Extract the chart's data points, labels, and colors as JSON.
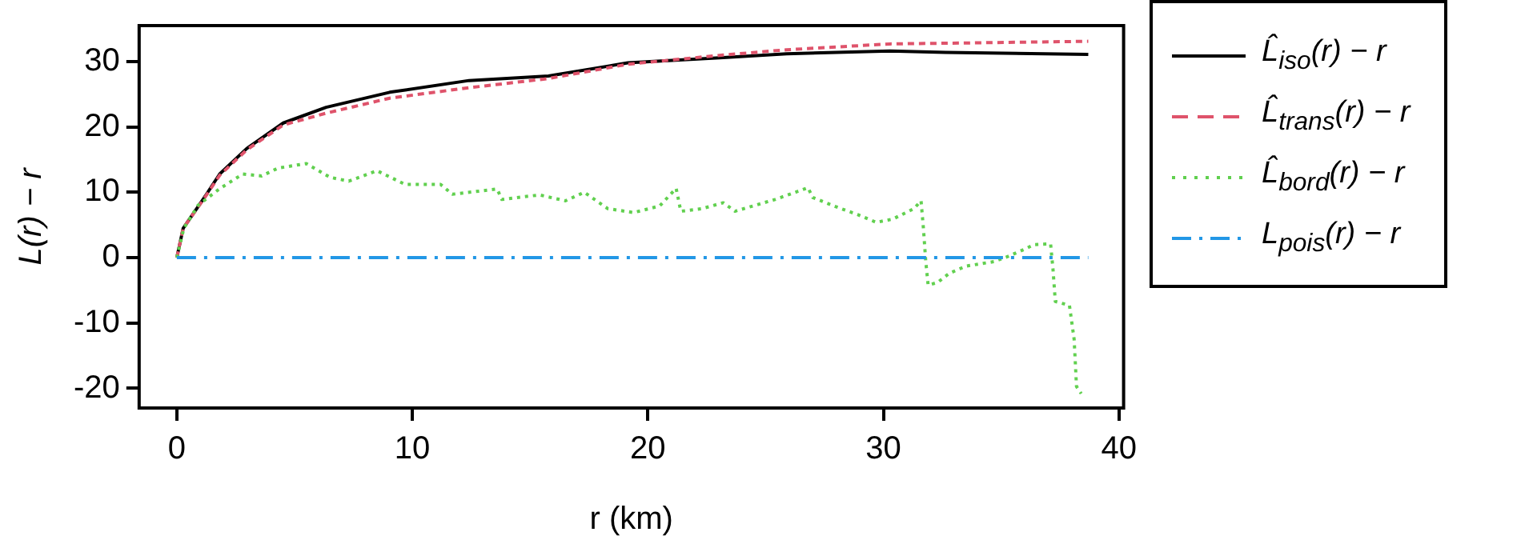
{
  "chart_data": {
    "type": "line",
    "xlabel": "r (km)",
    "ylabel": "L(r) − r",
    "xlim": [
      -1.6,
      40.2
    ],
    "ylim": [
      -23,
      35.5
    ],
    "xticks": [
      0,
      10,
      20,
      30,
      40
    ],
    "yticks": [
      -20,
      -10,
      0,
      10,
      20,
      30
    ],
    "grid": false,
    "legend": "right",
    "marker": "none",
    "series": [
      {
        "name": "L̂$_{iso}$(r) − r",
        "color": "#000000",
        "line_style": "solid",
        "x": [
          0,
          0.27,
          1.15,
          1.82,
          2.97,
          4.52,
          6.34,
          9.04,
          12.41,
          15.78,
          19.15,
          23.2,
          25.89,
          30.28,
          32.64,
          38.7
        ],
        "values": [
          0,
          4.5,
          9.1,
          12.8,
          16.7,
          20.6,
          23,
          25.3,
          27.1,
          27.8,
          29.8,
          30.6,
          31.2,
          31.6,
          31.4,
          31.1
        ]
      },
      {
        "name": "L̂$_{trans}$(r) − r",
        "color": "#df536b",
        "line_style": "dashed",
        "x": [
          0,
          0.27,
          1.15,
          1.82,
          2.97,
          4.52,
          6.34,
          9.04,
          12.41,
          15.78,
          19.15,
          23.2,
          25.89,
          30.28,
          32.64,
          38.7
        ],
        "values": [
          0,
          4.5,
          9,
          12.6,
          16.5,
          20.3,
          22.1,
          24.4,
          26,
          27.4,
          29.6,
          31,
          31.8,
          32.7,
          32.8,
          33.1
        ]
      },
      {
        "name": "L̂$_{bord}$(r) − r",
        "color": "#61d04f",
        "line_style": "dotted",
        "x": [
          0,
          0.3,
          0.9,
          1.8,
          2.8,
          3.6,
          4.3,
          5.5,
          6.5,
          7.3,
          8.5,
          9.7,
          11.2,
          11.7,
          13.6,
          13.8,
          15.4,
          16.5,
          17.3,
          18.3,
          19.4,
          20.5,
          21.2,
          21.4,
          22.3,
          23.2,
          23.7,
          25.4,
          26.8,
          27,
          27.9,
          28.9,
          29.7,
          30.4,
          31.3,
          31.6,
          31.7,
          31.8,
          31.9,
          32.3,
          32.8,
          33.5,
          34.7,
          35.3,
          36,
          36.4,
          37.1,
          37.2,
          37.3,
          37.9,
          38.1,
          38.2,
          38.4
        ],
        "values": [
          0,
          4.5,
          8,
          10.5,
          12.8,
          12.5,
          13.7,
          14.4,
          12.3,
          11.7,
          13.3,
          11.2,
          11.2,
          9.7,
          10.5,
          8.9,
          9.6,
          8.7,
          10,
          7.5,
          6.9,
          7.9,
          10.6,
          7.1,
          7.5,
          8.4,
          7.1,
          8.9,
          10.7,
          9.2,
          7.9,
          6.6,
          5.4,
          5.9,
          7.5,
          8.7,
          4.5,
          -0.6,
          -4.2,
          -3.8,
          -2.4,
          -1.3,
          -0.6,
          0.2,
          1.3,
          2,
          2.1,
          -1.7,
          -6.7,
          -7.3,
          -12.5,
          -19.7,
          -20.8
        ]
      },
      {
        "name": "L$_{pois}$(r) − r",
        "color": "#2297e6",
        "line_style": "dashdot",
        "x": [
          0,
          38.7
        ],
        "values": [
          0,
          0
        ]
      }
    ]
  }
}
